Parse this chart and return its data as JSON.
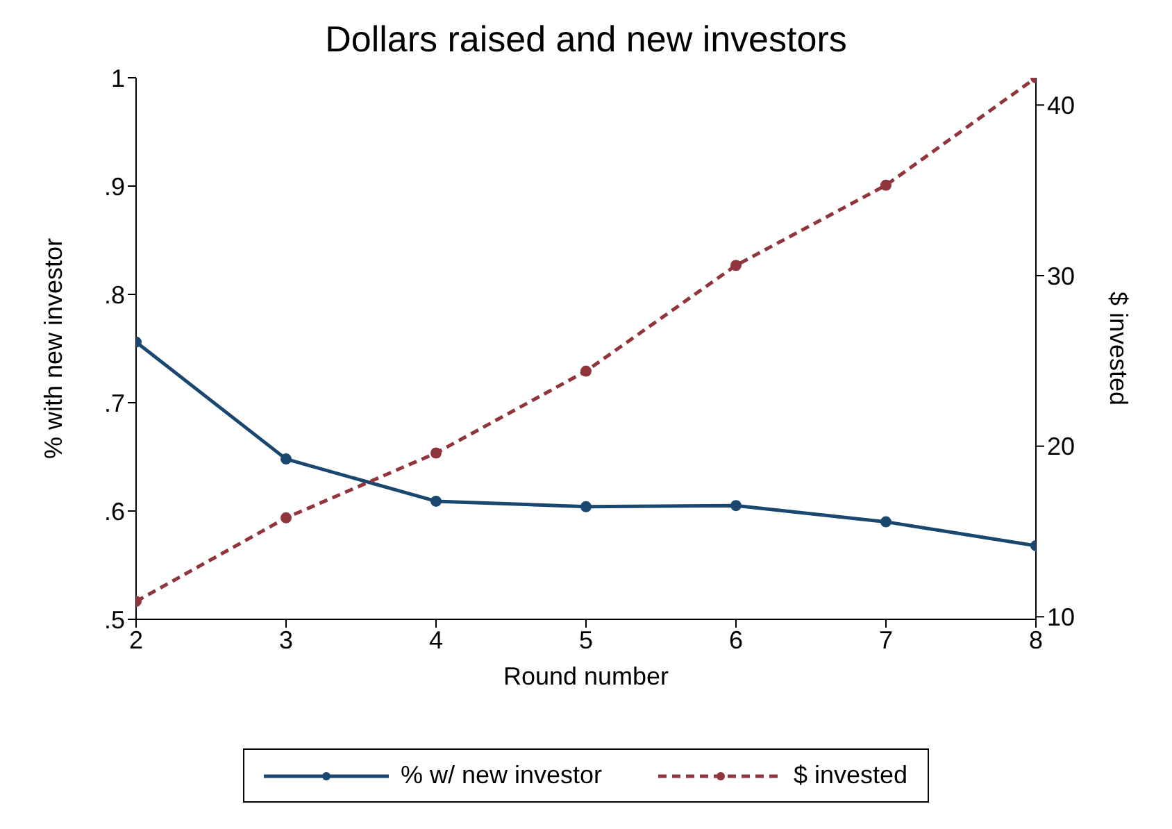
{
  "chart_data": {
    "type": "line",
    "title": "Dollars raised and new investors",
    "xlabel": "Round number",
    "ylabel": "% with new investor",
    "y2label": "$ invested",
    "x": [
      2,
      3,
      4,
      5,
      6,
      7,
      8
    ],
    "series": [
      {
        "name": "% w/ new investor",
        "color": "#1a476f",
        "values": [
          0.756,
          0.648,
          0.609,
          0.604,
          0.605,
          0.59,
          0.568
        ],
        "line_style": "solid"
      },
      {
        "name": "$ invested",
        "color": "#90353b",
        "axis": "y2",
        "values": [
          10.9,
          15.8,
          19.6,
          24.4,
          30.6,
          35.3,
          41.6
        ],
        "line_style": "dashed"
      }
    ],
    "xlim": [
      2,
      8
    ],
    "xticks": [
      2,
      3,
      4,
      5,
      6,
      7,
      8
    ],
    "ylim": [
      0.5,
      1
    ],
    "yticks": [
      {
        "value": 0.5,
        "label": ".5"
      },
      {
        "value": 0.6,
        "label": ".6"
      },
      {
        "value": 0.7,
        "label": ".7"
      },
      {
        "value": 0.8,
        "label": ".8"
      },
      {
        "value": 0.9,
        "label": ".9"
      },
      {
        "value": 1,
        "label": "1"
      }
    ],
    "y2lim": [
      9.85,
      41.6
    ],
    "y2ticks": [
      10,
      20,
      30,
      40
    ],
    "grid": false,
    "legend": "bottom",
    "marker": "circle"
  }
}
